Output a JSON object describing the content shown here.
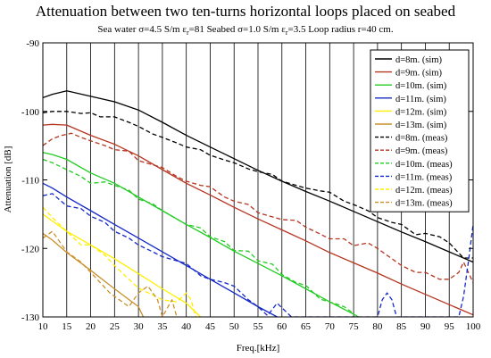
{
  "chart_data": {
    "type": "line",
    "title": "Attenuation between two ten-turns horizontal loops placed on seabed",
    "subtitle": {
      "part1": "Sea water σ=4.5 S/m ε",
      "sub1": "r",
      "part2": "=81 Seabed σ=1.0 S/m ε",
      "sub2": "r",
      "part3": "=3.5 Loop radius r=40 cm."
    },
    "xlabel": "Freq.[kHz]",
    "ylabel": "Attenuation [dB]",
    "xlim": [
      10,
      100
    ],
    "ylim": [
      -130,
      -90
    ],
    "xticks": [
      10,
      15,
      20,
      25,
      30,
      35,
      40,
      45,
      50,
      55,
      60,
      65,
      70,
      75,
      80,
      85,
      90,
      95,
      100
    ],
    "yticks": [
      -90,
      -100,
      -110,
      -120,
      -130
    ],
    "grid": "vertical lines at each x tick",
    "legend_position": "top-right",
    "series": [
      {
        "name": "d=8m. (sim)",
        "color": "#000000",
        "dash": "solid",
        "x": [
          10,
          12,
          15,
          20,
          25,
          30,
          35,
          40,
          45,
          50,
          55,
          60,
          65,
          70,
          75,
          80,
          85,
          90,
          95,
          100
        ],
        "y": [
          -98,
          -97.5,
          -97,
          -97.8,
          -98.6,
          -99.8,
          -101.6,
          -103.5,
          -105.2,
          -106.9,
          -108.6,
          -110.2,
          -111.7,
          -113.1,
          -114.6,
          -116.1,
          -117.6,
          -119.0,
          -120.5,
          -122
        ]
      },
      {
        "name": "d=9m. (sim)",
        "color": "#b5341f",
        "dash": "solid",
        "x": [
          10,
          12,
          15,
          20,
          25,
          30,
          35,
          40,
          45,
          50,
          55,
          60,
          65,
          70,
          75,
          80,
          85,
          90,
          95,
          100
        ],
        "y": [
          -102,
          -101.9,
          -102,
          -103.5,
          -104.8,
          -106.5,
          -108.5,
          -110.5,
          -112.2,
          -114.0,
          -115.7,
          -117.3,
          -118.9,
          -120.6,
          -122.1,
          -123.6,
          -125.2,
          -126.7,
          -128.2,
          -129.7
        ]
      },
      {
        "name": "d=10m. (sim)",
        "color": "#22cc22",
        "dash": "solid",
        "x": [
          10,
          12,
          15,
          20,
          25,
          30,
          35,
          40,
          45,
          50,
          55,
          60,
          65,
          70,
          75,
          76
        ],
        "y": [
          -106,
          -106.3,
          -107,
          -109,
          -110.5,
          -112.5,
          -114.5,
          -116.5,
          -118.4,
          -120.4,
          -122.2,
          -124.0,
          -125.9,
          -127.8,
          -129.6,
          -130
        ]
      },
      {
        "name": "d=11m. (sim)",
        "color": "#1428c8",
        "dash": "solid",
        "x": [
          10,
          12,
          15,
          20,
          25,
          30,
          35,
          40,
          45,
          50,
          55,
          59
        ],
        "y": [
          -110.5,
          -111.2,
          -112.5,
          -114.5,
          -116.5,
          -118.5,
          -120.5,
          -122.5,
          -124.5,
          -126.5,
          -128.5,
          -130
        ]
      },
      {
        "name": "d=12m. (sim)",
        "color": "#ffee00",
        "dash": "solid",
        "x": [
          10,
          12,
          15,
          20,
          25,
          30,
          35,
          40,
          43
        ],
        "y": [
          -115,
          -116,
          -117.5,
          -119.5,
          -121.5,
          -123.7,
          -125.9,
          -128,
          -130
        ]
      },
      {
        "name": "d=13m. (sim)",
        "color": "#c8902a",
        "dash": "solid",
        "x": [
          10,
          12,
          15,
          20,
          25,
          30,
          31
        ],
        "y": [
          -117.8,
          -118.8,
          -120.6,
          -123.2,
          -125.9,
          -128.5,
          -130
        ]
      },
      {
        "name": "d=8m. (meas)",
        "color": "#000000",
        "dash": "dashed",
        "x": [
          10,
          12,
          15,
          18,
          20,
          22,
          25,
          28,
          30,
          33,
          35,
          38,
          40,
          43,
          45,
          48,
          50,
          53,
          55,
          58,
          60,
          63,
          65,
          68,
          70,
          73,
          75,
          78,
          80,
          83,
          85,
          88,
          90,
          93,
          95,
          98,
          100
        ],
        "y": [
          -100.2,
          -100,
          -100,
          -100.3,
          -100.2,
          -100.8,
          -100.8,
          -101.6,
          -102.2,
          -103.3,
          -103.8,
          -104.6,
          -105.2,
          -105.6,
          -106.4,
          -107.1,
          -107.5,
          -108.4,
          -108.8,
          -109.2,
          -110.2,
          -110.8,
          -111.2,
          -111.6,
          -111.8,
          -113.1,
          -113.6,
          -114.5,
          -115.5,
          -116.2,
          -116.5,
          -118.0,
          -117.8,
          -118.3,
          -119.2,
          -121.4,
          -121.4
        ]
      },
      {
        "name": "d=9m. (meas)",
        "color": "#b5341f",
        "dash": "dashed",
        "x": [
          10,
          12,
          14,
          16,
          18,
          20,
          23,
          25,
          28,
          30,
          33,
          35,
          38,
          40,
          43,
          45,
          48,
          50,
          53,
          55,
          58,
          60,
          63,
          65,
          68,
          70,
          73,
          75,
          78,
          80,
          83,
          85,
          88,
          90,
          93,
          95,
          97,
          98,
          100
        ],
        "y": [
          -105,
          -104,
          -103.5,
          -103.2,
          -103.8,
          -104.3,
          -105.0,
          -105.6,
          -105.8,
          -107.2,
          -107.8,
          -108.2,
          -109.5,
          -110.2,
          -110.8,
          -111.0,
          -112.5,
          -113.1,
          -113.6,
          -114.8,
          -115.4,
          -115.8,
          -115.9,
          -116.9,
          -117.9,
          -118.6,
          -118.6,
          -119.6,
          -119.2,
          -120.0,
          -121.5,
          -122.5,
          -123.5,
          -123.5,
          -124.5,
          -124.5,
          -123.5,
          -122.0,
          -125.0
        ]
      },
      {
        "name": "d=10m. (meas)",
        "color": "#22cc22",
        "dash": "dashed",
        "x": [
          10,
          12,
          15,
          18,
          20,
          23,
          25,
          28,
          30,
          33,
          35,
          38,
          40,
          43,
          45,
          48,
          50,
          53,
          55,
          58,
          60,
          63,
          65,
          68,
          70,
          73,
          75
        ],
        "y": [
          -107,
          -107.5,
          -108.5,
          -109.5,
          -110.5,
          -110.3,
          -110.8,
          -111.5,
          -112.8,
          -113.5,
          -114.5,
          -115.7,
          -116.5,
          -117.0,
          -118.3,
          -119.0,
          -120.3,
          -120.4,
          -121.8,
          -122.3,
          -123.8,
          -125.0,
          -125.4,
          -127.4,
          -127.8,
          -128.5,
          -129.5
        ]
      },
      {
        "name": "d=11m. (meas)",
        "color": "#1428c8",
        "dash": "dashed",
        "x": [
          10,
          12,
          15,
          18,
          20,
          23,
          25,
          28,
          30,
          33,
          35,
          38,
          40,
          43,
          45,
          48,
          50,
          53,
          55,
          57,
          59,
          62,
          80,
          81,
          82,
          83,
          84,
          97,
          98,
          99,
          100
        ],
        "y": [
          -112.3,
          -112.0,
          -113.8,
          -114.2,
          -115.3,
          -116.2,
          -117.5,
          -118.5,
          -119.5,
          -120.5,
          -121.2,
          -121.8,
          -122.2,
          -124.0,
          -124.5,
          -125.0,
          -125.5,
          -127.5,
          -128.5,
          -129.8,
          -128.0,
          -130,
          -130,
          -127.5,
          -126.5,
          -127.5,
          -130,
          -130,
          -127,
          -122,
          -116.5
        ]
      },
      {
        "name": "d=12m. (meas)",
        "color": "#ffee00",
        "dash": "dashed",
        "x": [
          10,
          12,
          15,
          18,
          20,
          23,
          25,
          28,
          30,
          33,
          35,
          38,
          40,
          41,
          42
        ],
        "y": [
          -114,
          -115.5,
          -117.5,
          -119.5,
          -119.5,
          -121.0,
          -122.5,
          -124.5,
          -125.8,
          -126.8,
          -127.5,
          -127.8,
          -126.5,
          -127.5,
          -130
        ]
      },
      {
        "name": "d=13m. (meas)",
        "color": "#c8902a",
        "dash": "dashed",
        "x": [
          10,
          12,
          15,
          18,
          20,
          22,
          24,
          26,
          28,
          30,
          32,
          34,
          35,
          37,
          38
        ],
        "y": [
          -118.5,
          -117.5,
          -120.5,
          -122,
          -123.5,
          -125,
          -126.5,
          -127.5,
          -128.5,
          -126.5,
          -125.5,
          -127.5,
          -130,
          -127.5,
          -130
        ]
      }
    ]
  }
}
